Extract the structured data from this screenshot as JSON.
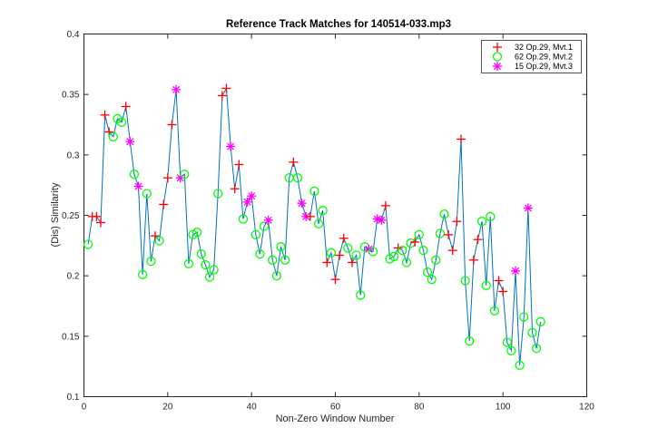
{
  "chart_data": {
    "type": "line",
    "title": "Reference Track Matches for 140514-033.mp3",
    "xlabel": "Non-Zero Window Number",
    "ylabel": "(Dis) Similarity",
    "xlim": [
      0,
      120
    ],
    "ylim": [
      0.1,
      0.4
    ],
    "xticks": [
      "0",
      "20",
      "40",
      "60",
      "80",
      "100",
      "120"
    ],
    "yticks": [
      "0.1",
      "0.15",
      "0.2",
      "0.25",
      "0.3",
      "0.35",
      "0.4"
    ],
    "grid": false,
    "legend_position": "top-right",
    "colors": {
      "line": "#0072bd",
      "plus": "#ff0000",
      "circle": "#00ff00",
      "star": "#ff00ff",
      "axes": "#262626"
    },
    "legend": [
      {
        "label": "32 Op.29, Mvt.1",
        "marker": "plus"
      },
      {
        "label": "62 Op.29, Mvt.2",
        "marker": "circle"
      },
      {
        "label": "15 Op.29, Mvt.3",
        "marker": "star"
      }
    ],
    "series": [
      {
        "x": 1,
        "y": 0.226,
        "m": "circle"
      },
      {
        "x": 2,
        "y": 0.249,
        "m": "plus"
      },
      {
        "x": 3,
        "y": 0.249,
        "m": "plus"
      },
      {
        "x": 4,
        "y": 0.244,
        "m": "plus"
      },
      {
        "x": 5,
        "y": 0.333,
        "m": "plus"
      },
      {
        "x": 6,
        "y": 0.319,
        "m": "plus"
      },
      {
        "x": 7,
        "y": 0.315,
        "m": "circle"
      },
      {
        "x": 8,
        "y": 0.33,
        "m": "circle"
      },
      {
        "x": 9,
        "y": 0.327,
        "m": "circle"
      },
      {
        "x": 10,
        "y": 0.34,
        "m": "plus"
      },
      {
        "x": 11,
        "y": 0.311,
        "m": "star"
      },
      {
        "x": 12,
        "y": 0.284,
        "m": "circle"
      },
      {
        "x": 13,
        "y": 0.274,
        "m": "star"
      },
      {
        "x": 14,
        "y": 0.201,
        "m": "circle"
      },
      {
        "x": 15,
        "y": 0.268,
        "m": "circle"
      },
      {
        "x": 16,
        "y": 0.212,
        "m": "circle"
      },
      {
        "x": 17,
        "y": 0.233,
        "m": "plus"
      },
      {
        "x": 18,
        "y": 0.229,
        "m": "circle"
      },
      {
        "x": 19,
        "y": 0.259,
        "m": "plus"
      },
      {
        "x": 20,
        "y": 0.281,
        "m": "plus"
      },
      {
        "x": 21,
        "y": 0.325,
        "m": "plus"
      },
      {
        "x": 22,
        "y": 0.354,
        "m": "star"
      },
      {
        "x": 23,
        "y": 0.281,
        "m": "star"
      },
      {
        "x": 24,
        "y": 0.284,
        "m": "circle"
      },
      {
        "x": 25,
        "y": 0.21,
        "m": "circle"
      },
      {
        "x": 26,
        "y": 0.234,
        "m": "circle"
      },
      {
        "x": 27,
        "y": 0.236,
        "m": "circle"
      },
      {
        "x": 28,
        "y": 0.218,
        "m": "circle"
      },
      {
        "x": 29,
        "y": 0.209,
        "m": "circle"
      },
      {
        "x": 30,
        "y": 0.199,
        "m": "circle"
      },
      {
        "x": 31,
        "y": 0.205,
        "m": "circle"
      },
      {
        "x": 32,
        "y": 0.268,
        "m": "circle"
      },
      {
        "x": 33,
        "y": 0.349,
        "m": "plus"
      },
      {
        "x": 34,
        "y": 0.355,
        "m": "plus"
      },
      {
        "x": 35,
        "y": 0.307,
        "m": "star"
      },
      {
        "x": 36,
        "y": 0.272,
        "m": "plus"
      },
      {
        "x": 37,
        "y": 0.292,
        "m": "plus"
      },
      {
        "x": 38,
        "y": 0.247,
        "m": "circle"
      },
      {
        "x": 39,
        "y": 0.261,
        "m": "star"
      },
      {
        "x": 40,
        "y": 0.266,
        "m": "star"
      },
      {
        "x": 41,
        "y": 0.234,
        "m": "circle"
      },
      {
        "x": 42,
        "y": 0.218,
        "m": "circle"
      },
      {
        "x": 43,
        "y": 0.241,
        "m": "circle"
      },
      {
        "x": 44,
        "y": 0.246,
        "m": "star"
      },
      {
        "x": 45,
        "y": 0.213,
        "m": "circle"
      },
      {
        "x": 46,
        "y": 0.2,
        "m": "circle"
      },
      {
        "x": 47,
        "y": 0.224,
        "m": "circle"
      },
      {
        "x": 48,
        "y": 0.213,
        "m": "circle"
      },
      {
        "x": 49,
        "y": 0.281,
        "m": "circle"
      },
      {
        "x": 50,
        "y": 0.294,
        "m": "plus"
      },
      {
        "x": 51,
        "y": 0.281,
        "m": "circle"
      },
      {
        "x": 52,
        "y": 0.26,
        "m": "star"
      },
      {
        "x": 53,
        "y": 0.249,
        "m": "star"
      },
      {
        "x": 54,
        "y": 0.249,
        "m": "plus"
      },
      {
        "x": 55,
        "y": 0.27,
        "m": "circle"
      },
      {
        "x": 56,
        "y": 0.243,
        "m": "circle"
      },
      {
        "x": 57,
        "y": 0.254,
        "m": "circle"
      },
      {
        "x": 58,
        "y": 0.211,
        "m": "plus"
      },
      {
        "x": 59,
        "y": 0.219,
        "m": "circle"
      },
      {
        "x": 60,
        "y": 0.197,
        "m": "plus"
      },
      {
        "x": 61,
        "y": 0.217,
        "m": "plus"
      },
      {
        "x": 62,
        "y": 0.231,
        "m": "plus"
      },
      {
        "x": 63,
        "y": 0.223,
        "m": "circle"
      },
      {
        "x": 64,
        "y": 0.211,
        "m": "plus"
      },
      {
        "x": 65,
        "y": 0.217,
        "m": "circle"
      },
      {
        "x": 66,
        "y": 0.184,
        "m": "circle"
      },
      {
        "x": 67,
        "y": 0.224,
        "m": "circle"
      },
      {
        "x": 68,
        "y": 0.222,
        "m": "star"
      },
      {
        "x": 69,
        "y": 0.22,
        "m": "circle"
      },
      {
        "x": 70,
        "y": 0.247,
        "m": "star"
      },
      {
        "x": 71,
        "y": 0.246,
        "m": "star"
      },
      {
        "x": 72,
        "y": 0.258,
        "m": "plus"
      },
      {
        "x": 73,
        "y": 0.214,
        "m": "circle"
      },
      {
        "x": 74,
        "y": 0.216,
        "m": "circle"
      },
      {
        "x": 75,
        "y": 0.223,
        "m": "plus"
      },
      {
        "x": 76,
        "y": 0.221,
        "m": "circle"
      },
      {
        "x": 77,
        "y": 0.211,
        "m": "circle"
      },
      {
        "x": 78,
        "y": 0.227,
        "m": "circle"
      },
      {
        "x": 79,
        "y": 0.228,
        "m": "plus"
      },
      {
        "x": 80,
        "y": 0.234,
        "m": "circle"
      },
      {
        "x": 81,
        "y": 0.221,
        "m": "circle"
      },
      {
        "x": 82,
        "y": 0.203,
        "m": "circle"
      },
      {
        "x": 83,
        "y": 0.197,
        "m": "circle"
      },
      {
        "x": 84,
        "y": 0.213,
        "m": "circle"
      },
      {
        "x": 85,
        "y": 0.235,
        "m": "circle"
      },
      {
        "x": 86,
        "y": 0.251,
        "m": "circle"
      },
      {
        "x": 87,
        "y": 0.234,
        "m": "plus"
      },
      {
        "x": 88,
        "y": 0.221,
        "m": "plus"
      },
      {
        "x": 89,
        "y": 0.245,
        "m": "plus"
      },
      {
        "x": 90,
        "y": 0.313,
        "m": "plus"
      },
      {
        "x": 91,
        "y": 0.196,
        "m": "circle"
      },
      {
        "x": 92,
        "y": 0.146,
        "m": "circle"
      },
      {
        "x": 93,
        "y": 0.213,
        "m": "plus"
      },
      {
        "x": 94,
        "y": 0.23,
        "m": "plus"
      },
      {
        "x": 95,
        "y": 0.245,
        "m": "circle"
      },
      {
        "x": 96,
        "y": 0.192,
        "m": "circle"
      },
      {
        "x": 97,
        "y": 0.249,
        "m": "circle"
      },
      {
        "x": 98,
        "y": 0.171,
        "m": "circle"
      },
      {
        "x": 99,
        "y": 0.196,
        "m": "plus"
      },
      {
        "x": 100,
        "y": 0.187,
        "m": "plus"
      },
      {
        "x": 101,
        "y": 0.145,
        "m": "circle"
      },
      {
        "x": 102,
        "y": 0.138,
        "m": "circle"
      },
      {
        "x": 103,
        "y": 0.204,
        "m": "star"
      },
      {
        "x": 104,
        "y": 0.126,
        "m": "circle"
      },
      {
        "x": 105,
        "y": 0.166,
        "m": "circle"
      },
      {
        "x": 106,
        "y": 0.256,
        "m": "star"
      },
      {
        "x": 107,
        "y": 0.153,
        "m": "circle"
      },
      {
        "x": 108,
        "y": 0.14,
        "m": "circle"
      },
      {
        "x": 109,
        "y": 0.162,
        "m": "circle"
      }
    ]
  }
}
